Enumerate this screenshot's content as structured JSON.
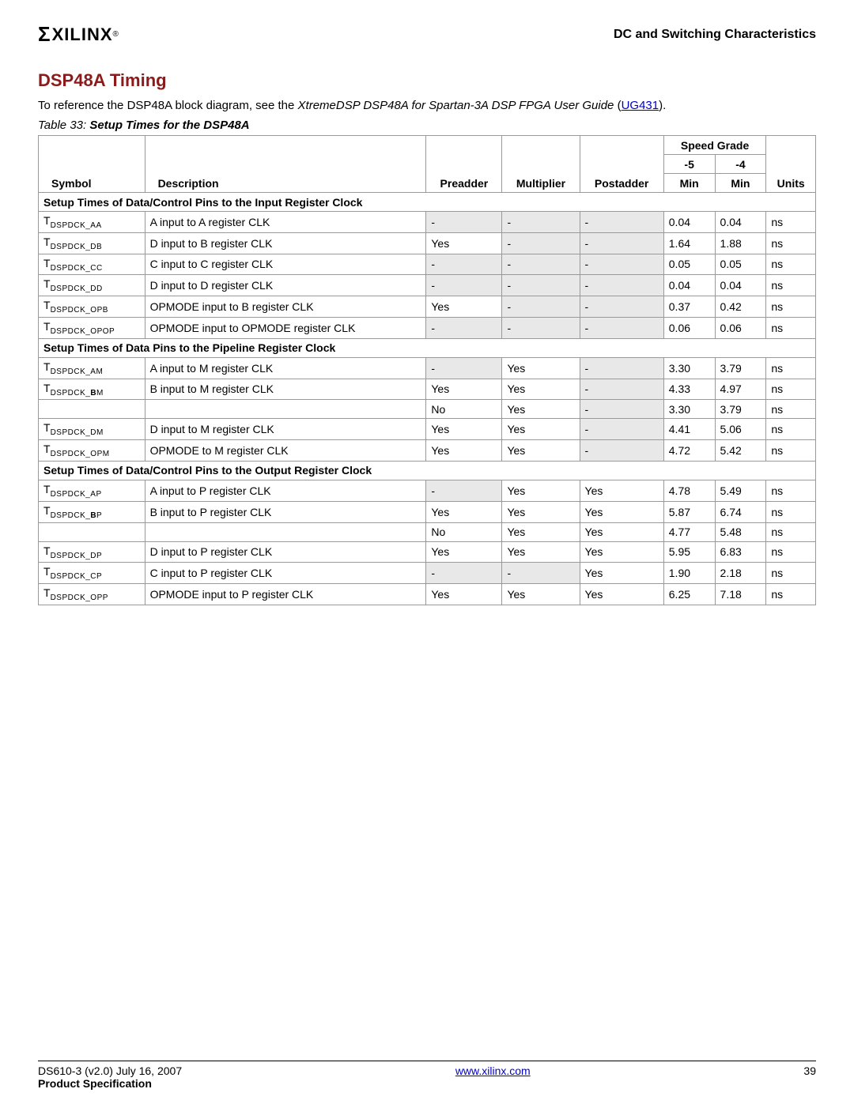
{
  "header": {
    "logo_sigma": "Σ",
    "logo_text": "XILINX",
    "logo_reg": "®",
    "section": "DC and Switching Characteristics"
  },
  "section_title": "DSP48A Timing",
  "intro_prefix": "To reference the DSP48A block diagram, see the ",
  "intro_em": "XtremeDSP DSP48A for Spartan-3A DSP FPGA User Guide",
  "intro_paren_open": " (",
  "intro_link": "UG431",
  "intro_paren_close": ").",
  "table_caption_num": "Table  33:",
  "table_caption_title": "  Setup Times for the DSP48A",
  "columns": {
    "symbol": "Symbol",
    "description": "Description",
    "preadder": "Preadder",
    "multiplier": "Multiplier",
    "postadder": "Postadder",
    "speed_grade": "Speed Grade",
    "g5": "-5",
    "g4": "-4",
    "min5": "Min",
    "min4": "Min",
    "units": "Units"
  },
  "sec1_title": "Setup Times of Data/Control Pins to the Input Register Clock",
  "sec2_title": "Setup Times of Data Pins to the Pipeline Register Clock",
  "sec3_title": "Setup Times of Data/Control Pins to the Output Register Clock",
  "r_aa": {
    "sub": "DSPDCK_AA",
    "desc": "A input to A register CLK",
    "pre": "-",
    "mul": "-",
    "post": "-",
    "v5": "0.04",
    "v4": "0.04",
    "u": "ns",
    "sh": [
      1,
      1,
      1
    ]
  },
  "r_db": {
    "sub": "DSPDCK_DB",
    "desc": "D input to B register CLK",
    "pre": "Yes",
    "mul": "-",
    "post": "-",
    "v5": "1.64",
    "v4": "1.88",
    "u": "ns",
    "sh": [
      0,
      1,
      1
    ]
  },
  "r_cc": {
    "sub": "DSPDCK_CC",
    "desc": "C input to C register CLK",
    "pre": "-",
    "mul": "-",
    "post": "-",
    "v5": "0.05",
    "v4": "0.05",
    "u": "ns",
    "sh": [
      1,
      1,
      1
    ]
  },
  "r_dd": {
    "sub": "DSPDCK_DD",
    "desc": "D input to D register CLK",
    "pre": "-",
    "mul": "-",
    "post": "-",
    "v5": "0.04",
    "v4": "0.04",
    "u": "ns",
    "sh": [
      1,
      1,
      1
    ]
  },
  "r_opb": {
    "sub": "DSPDCK_OPB",
    "desc": "OPMODE input to B register CLK",
    "pre": "Yes",
    "mul": "-",
    "post": "-",
    "v5": "0.37",
    "v4": "0.42",
    "u": "ns",
    "sh": [
      0,
      1,
      1
    ]
  },
  "r_opop": {
    "sub": "DSPDCK_OPOP",
    "desc": "OPMODE input to OPMODE register CLK",
    "pre": "-",
    "mul": "-",
    "post": "-",
    "v5": "0.06",
    "v4": "0.06",
    "u": "ns",
    "sh": [
      1,
      1,
      1
    ]
  },
  "r_am": {
    "sub": "DSPDCK_AM",
    "desc": "A input to M register CLK",
    "pre": "-",
    "mul": "Yes",
    "post": "-",
    "v5": "3.30",
    "v4": "3.79",
    "u": "ns",
    "sh": [
      1,
      0,
      1
    ]
  },
  "r_bm": {
    "sub": "DSPDCK_BM",
    "desc": "B input to M register CLK",
    "pre": "Yes",
    "mul": "Yes",
    "post": "-",
    "v5": "4.33",
    "v4": "4.97",
    "u": "ns",
    "sh": [
      0,
      0,
      1
    ],
    "bold": "B"
  },
  "r_bm2": {
    "desc": "",
    "pre": "No",
    "mul": "Yes",
    "post": "-",
    "v5": "3.30",
    "v4": "3.79",
    "u": "ns",
    "sh": [
      0,
      0,
      1
    ]
  },
  "r_dm": {
    "sub": "DSPDCK_DM",
    "desc": "D input to M register CLK",
    "pre": "Yes",
    "mul": "Yes",
    "post": "-",
    "v5": "4.41",
    "v4": "5.06",
    "u": "ns",
    "sh": [
      0,
      0,
      1
    ]
  },
  "r_opm": {
    "sub": "DSPDCK_OPM",
    "desc": "OPMODE to M register CLK",
    "pre": "Yes",
    "mul": "Yes",
    "post": "-",
    "v5": "4.72",
    "v4": "5.42",
    "u": "ns",
    "sh": [
      0,
      0,
      1
    ]
  },
  "r_ap": {
    "sub": "DSPDCK_AP",
    "desc": "A input to P register CLK",
    "pre": "-",
    "mul": "Yes",
    "post": "Yes",
    "v5": "4.78",
    "v4": "5.49",
    "u": "ns",
    "sh": [
      1,
      0,
      0
    ]
  },
  "r_bp": {
    "sub": "DSPDCK_BP",
    "desc": "B input to P register CLK",
    "pre": "Yes",
    "mul": "Yes",
    "post": "Yes",
    "v5": "5.87",
    "v4": "6.74",
    "u": "ns",
    "sh": [
      0,
      0,
      0
    ],
    "bold": "B"
  },
  "r_bp2": {
    "desc": "",
    "pre": "No",
    "mul": "Yes",
    "post": "Yes",
    "v5": "4.77",
    "v4": "5.48",
    "u": "ns",
    "sh": [
      0,
      0,
      0
    ]
  },
  "r_dp": {
    "sub": "DSPDCK_DP",
    "desc": "D input to P register CLK",
    "pre": "Yes",
    "mul": "Yes",
    "post": "Yes",
    "v5": "5.95",
    "v4": "6.83",
    "u": "ns",
    "sh": [
      0,
      0,
      0
    ]
  },
  "r_cp": {
    "sub": "DSPDCK_CP",
    "desc": "C input to P register CLK",
    "pre": "-",
    "mul": "-",
    "post": "Yes",
    "v5": "1.90",
    "v4": "2.18",
    "u": "ns",
    "sh": [
      1,
      1,
      0
    ]
  },
  "r_opp": {
    "sub": "DSPDCK_OPP",
    "desc": "OPMODE input to P register CLK",
    "pre": "Yes",
    "mul": "Yes",
    "post": "Yes",
    "v5": "6.25",
    "v4": "7.18",
    "u": "ns",
    "sh": [
      0,
      0,
      0
    ]
  },
  "footer": {
    "doc_id": "DS610-3 (v2.0) July 16, 2007",
    "spec": "Product Specification",
    "url": "www.xilinx.com",
    "page": "39"
  }
}
